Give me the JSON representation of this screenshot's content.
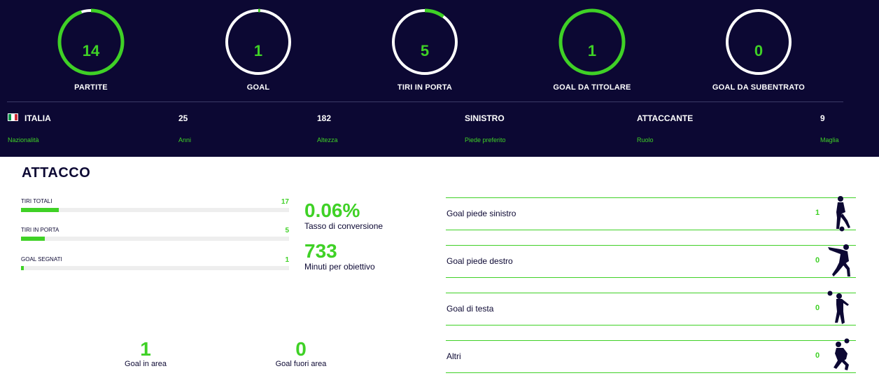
{
  "circle_stats": [
    {
      "value": "14",
      "label": "PARTITE",
      "progress": 0.95
    },
    {
      "value": "1",
      "label": "GOAL",
      "progress": 0.01
    },
    {
      "value": "5",
      "label": "TIRI IN PORTA",
      "progress": 0.1
    },
    {
      "value": "1",
      "label": "GOAL DA TITOLARE",
      "progress": 1.0
    },
    {
      "value": "0",
      "label": "GOAL DA SUBENTRATO",
      "progress": 0
    }
  ],
  "info": {
    "nationality": {
      "value": "ITALIA",
      "label": "Nazionalità"
    },
    "age": {
      "value": "25",
      "label": "Anni"
    },
    "height": {
      "value": "182",
      "label": "Altezza"
    },
    "foot": {
      "value": "SINISTRO",
      "label": "Piede preferito"
    },
    "role": {
      "value": "ATTACCANTE",
      "label": "Ruolo"
    },
    "shirt": {
      "value": "9",
      "label": "Maglia"
    }
  },
  "colors": {
    "accent": "#3fd126",
    "navy": "#0c0833",
    "flag_green": "#009246",
    "flag_white": "#ffffff",
    "flag_red": "#ce2b37"
  },
  "attack": {
    "title": "ATTACCO",
    "bars": [
      {
        "label": "TIRI TOTALI",
        "value": "17",
        "fill": 0.14
      },
      {
        "label": "TIRI IN PORTA",
        "value": "5",
        "fill": 0.09
      },
      {
        "label": "GOAL SEGNATI",
        "value": "1",
        "fill": 0.01
      }
    ],
    "conversion": {
      "value": "0.06%",
      "label": "Tasso di conversione"
    },
    "minutes": {
      "value": "733",
      "label": "Minuti per obiettivo"
    },
    "goals_in_area": {
      "value": "1",
      "label": "Goal in area"
    },
    "goals_out_area": {
      "value": "0",
      "label": "Goal fuori area"
    }
  },
  "goal_types": [
    {
      "label": "Goal piede sinistro",
      "value": "1",
      "icon": "left-foot-kick-icon"
    },
    {
      "label": "Goal piede destro",
      "value": "0",
      "icon": "right-foot-kick-icon"
    },
    {
      "label": "Goal di testa",
      "value": "0",
      "icon": "header-icon"
    },
    {
      "label": "Altri",
      "value": "0",
      "icon": "bicycle-kick-icon"
    }
  ]
}
